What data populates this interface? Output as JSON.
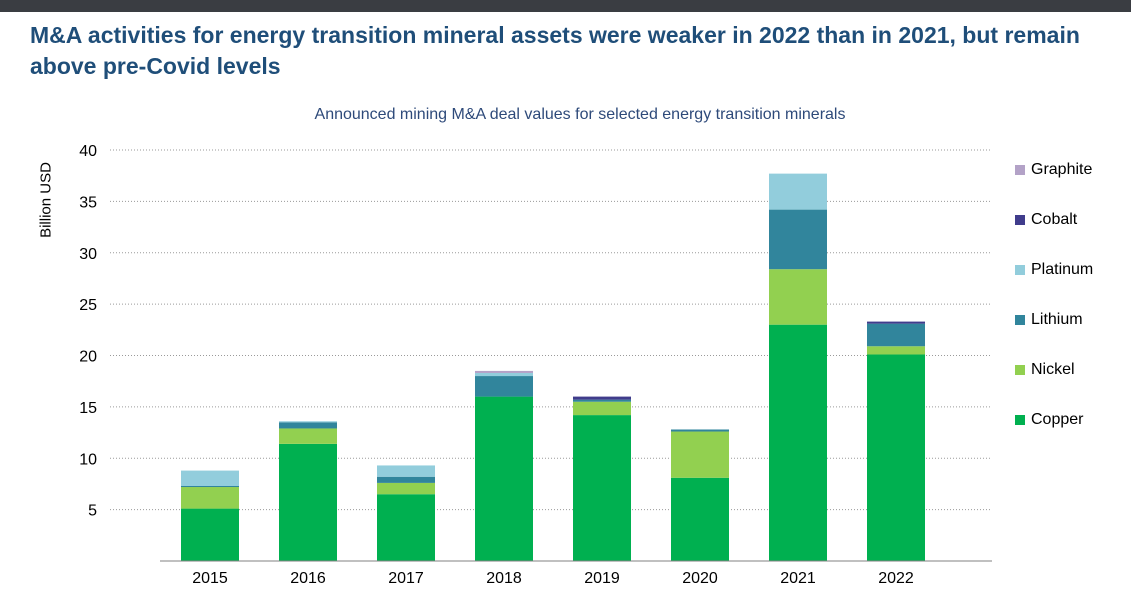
{
  "page": {
    "headline": "M&A activities for energy transition mineral assets were weaker in 2022 than in 2021, but remain above pre-Covid levels"
  },
  "chart_data": {
    "type": "bar",
    "stacked": true,
    "title": "Announced mining M&A deal values for selected energy transition minerals",
    "ylabel": "Billion USD",
    "xlabel": "",
    "ylim": [
      0,
      40
    ],
    "yticks": [
      5,
      10,
      15,
      20,
      25,
      30,
      35,
      40
    ],
    "grid": true,
    "legend_position": "right",
    "categories": [
      "2015",
      "2016",
      "2017",
      "2018",
      "2019",
      "2020",
      "2021",
      "2022"
    ],
    "series": [
      {
        "name": "Copper",
        "color": "#00b050",
        "values": [
          5.1,
          11.4,
          6.5,
          16.0,
          14.2,
          8.1,
          23.0,
          20.1
        ]
      },
      {
        "name": "Nickel",
        "color": "#92d050",
        "values": [
          2.1,
          1.5,
          1.1,
          0.0,
          1.3,
          4.5,
          5.4,
          0.8
        ]
      },
      {
        "name": "Lithium",
        "color": "#31859c",
        "values": [
          0.1,
          0.6,
          0.6,
          2.0,
          0.2,
          0.2,
          5.8,
          2.2
        ]
      },
      {
        "name": "Platinum",
        "color": "#92cddc",
        "values": [
          1.5,
          0.1,
          1.1,
          0.3,
          0.0,
          0.0,
          3.5,
          0.0
        ]
      },
      {
        "name": "Cobalt",
        "color": "#403c8c",
        "values": [
          0.0,
          0.0,
          0.0,
          0.0,
          0.3,
          0.0,
          0.0,
          0.2
        ]
      },
      {
        "name": "Graphite",
        "color": "#b3a2c7",
        "values": [
          0.0,
          0.0,
          0.0,
          0.2,
          0.0,
          0.0,
          0.0,
          0.0
        ]
      }
    ],
    "legend_order": [
      "Graphite",
      "Cobalt",
      "Platinum",
      "Lithium",
      "Nickel",
      "Copper"
    ]
  }
}
